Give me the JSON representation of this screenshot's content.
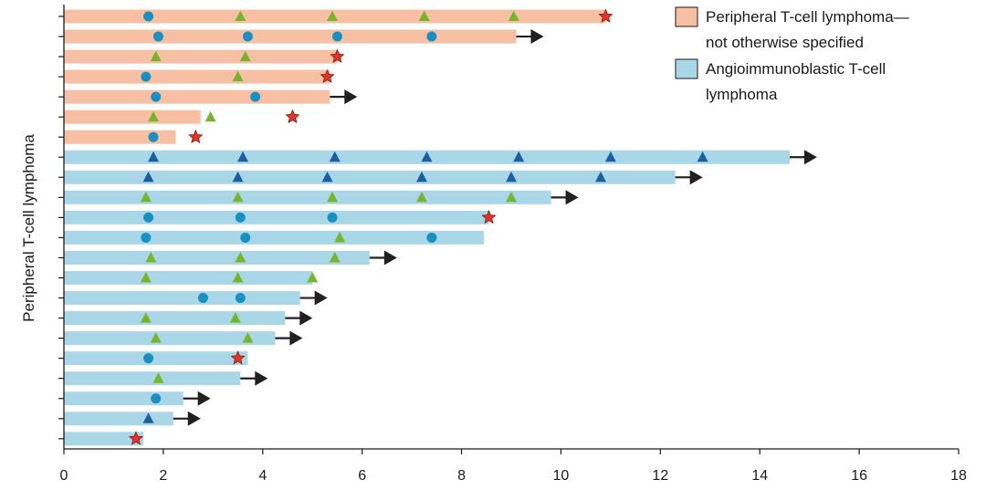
{
  "chart_data": {
    "type": "swimmer",
    "title": "",
    "xlabel": "",
    "ylabel": "Peripheral T-cell lymphoma",
    "xlim": [
      0,
      18
    ],
    "xticks": [
      0,
      2,
      4,
      6,
      8,
      10,
      12,
      14,
      16,
      18
    ],
    "xtick_labels": [
      "0",
      "2",
      "4",
      "6",
      "8",
      "10",
      "12",
      "14",
      "16",
      "18"
    ],
    "colors": {
      "ptcl_nos": "#f7bfa3",
      "aitl": "#aad7e8",
      "circle": "#1a8fc2",
      "green_triangle": "#79b52c",
      "blue_triangle": "#1b5fa0",
      "star": "#e0352b",
      "arrow": "#231f20"
    },
    "legend": [
      {
        "key": "ptcl_nos",
        "lines": [
          "Peripheral T-cell lymphoma—",
          "not otherwise specified"
        ]
      },
      {
        "key": "aitl",
        "lines": [
          "Angioimmunoblastic T-cell",
          "lymphoma"
        ]
      }
    ],
    "patients": [
      {
        "group": "ptcl_nos",
        "duration": 10.9,
        "ongoing": false,
        "markers": [
          {
            "t": 1.7,
            "s": "circle"
          },
          {
            "t": 3.55,
            "s": "green_triangle"
          },
          {
            "t": 5.4,
            "s": "green_triangle"
          },
          {
            "t": 7.25,
            "s": "green_triangle"
          },
          {
            "t": 9.05,
            "s": "green_triangle"
          },
          {
            "t": 10.9,
            "s": "star"
          }
        ]
      },
      {
        "group": "ptcl_nos",
        "duration": 9.1,
        "ongoing": true,
        "markers": [
          {
            "t": 1.9,
            "s": "circle"
          },
          {
            "t": 3.7,
            "s": "circle"
          },
          {
            "t": 5.5,
            "s": "circle"
          },
          {
            "t": 7.4,
            "s": "circle"
          }
        ]
      },
      {
        "group": "ptcl_nos",
        "duration": 5.5,
        "ongoing": false,
        "markers": [
          {
            "t": 1.85,
            "s": "green_triangle"
          },
          {
            "t": 3.65,
            "s": "green_triangle"
          },
          {
            "t": 5.5,
            "s": "star"
          }
        ]
      },
      {
        "group": "ptcl_nos",
        "duration": 5.35,
        "ongoing": false,
        "markers": [
          {
            "t": 1.65,
            "s": "circle"
          },
          {
            "t": 3.5,
            "s": "green_triangle"
          },
          {
            "t": 5.3,
            "s": "star"
          }
        ]
      },
      {
        "group": "ptcl_nos",
        "duration": 5.35,
        "ongoing": true,
        "markers": [
          {
            "t": 1.85,
            "s": "circle"
          },
          {
            "t": 3.85,
            "s": "circle"
          }
        ]
      },
      {
        "group": "ptcl_nos",
        "duration": 2.75,
        "ongoing": false,
        "markers": [
          {
            "t": 1.8,
            "s": "green_triangle"
          },
          {
            "t": 2.95,
            "s": "green_triangle"
          },
          {
            "t": 4.6,
            "s": "star"
          }
        ]
      },
      {
        "group": "ptcl_nos",
        "duration": 2.25,
        "ongoing": false,
        "markers": [
          {
            "t": 1.8,
            "s": "circle"
          },
          {
            "t": 2.65,
            "s": "star"
          }
        ]
      },
      {
        "group": "aitl",
        "duration": 14.6,
        "ongoing": true,
        "markers": [
          {
            "t": 1.8,
            "s": "blue_triangle"
          },
          {
            "t": 3.6,
            "s": "blue_triangle"
          },
          {
            "t": 5.45,
            "s": "blue_triangle"
          },
          {
            "t": 7.3,
            "s": "blue_triangle"
          },
          {
            "t": 9.15,
            "s": "blue_triangle"
          },
          {
            "t": 11.0,
            "s": "blue_triangle"
          },
          {
            "t": 12.85,
            "s": "blue_triangle"
          }
        ]
      },
      {
        "group": "aitl",
        "duration": 12.3,
        "ongoing": true,
        "markers": [
          {
            "t": 1.7,
            "s": "blue_triangle"
          },
          {
            "t": 3.5,
            "s": "blue_triangle"
          },
          {
            "t": 5.3,
            "s": "blue_triangle"
          },
          {
            "t": 7.2,
            "s": "blue_triangle"
          },
          {
            "t": 9.0,
            "s": "blue_triangle"
          },
          {
            "t": 10.8,
            "s": "blue_triangle"
          }
        ]
      },
      {
        "group": "aitl",
        "duration": 9.8,
        "ongoing": true,
        "markers": [
          {
            "t": 1.65,
            "s": "green_triangle"
          },
          {
            "t": 3.5,
            "s": "green_triangle"
          },
          {
            "t": 5.4,
            "s": "green_triangle"
          },
          {
            "t": 7.2,
            "s": "green_triangle"
          },
          {
            "t": 9.0,
            "s": "green_triangle"
          }
        ]
      },
      {
        "group": "aitl",
        "duration": 8.55,
        "ongoing": false,
        "markers": [
          {
            "t": 1.7,
            "s": "circle"
          },
          {
            "t": 3.55,
            "s": "circle"
          },
          {
            "t": 5.4,
            "s": "circle"
          },
          {
            "t": 8.55,
            "s": "star"
          }
        ]
      },
      {
        "group": "aitl",
        "duration": 8.45,
        "ongoing": false,
        "markers": [
          {
            "t": 1.65,
            "s": "circle"
          },
          {
            "t": 3.65,
            "s": "circle"
          },
          {
            "t": 5.55,
            "s": "green_triangle"
          },
          {
            "t": 7.4,
            "s": "circle"
          }
        ]
      },
      {
        "group": "aitl",
        "duration": 6.15,
        "ongoing": true,
        "markers": [
          {
            "t": 1.75,
            "s": "green_triangle"
          },
          {
            "t": 3.55,
            "s": "green_triangle"
          },
          {
            "t": 5.45,
            "s": "green_triangle"
          }
        ]
      },
      {
        "group": "aitl",
        "duration": 5.0,
        "ongoing": false,
        "markers": [
          {
            "t": 1.65,
            "s": "green_triangle"
          },
          {
            "t": 3.5,
            "s": "green_triangle"
          },
          {
            "t": 5.0,
            "s": "green_triangle"
          }
        ]
      },
      {
        "group": "aitl",
        "duration": 4.75,
        "ongoing": true,
        "markers": [
          {
            "t": 2.8,
            "s": "circle"
          },
          {
            "t": 3.55,
            "s": "circle"
          }
        ]
      },
      {
        "group": "aitl",
        "duration": 4.45,
        "ongoing": true,
        "markers": [
          {
            "t": 1.65,
            "s": "green_triangle"
          },
          {
            "t": 3.45,
            "s": "green_triangle"
          }
        ]
      },
      {
        "group": "aitl",
        "duration": 4.25,
        "ongoing": true,
        "markers": [
          {
            "t": 1.85,
            "s": "green_triangle"
          },
          {
            "t": 3.7,
            "s": "green_triangle"
          }
        ]
      },
      {
        "group": "aitl",
        "duration": 3.7,
        "ongoing": false,
        "markers": [
          {
            "t": 1.7,
            "s": "circle"
          },
          {
            "t": 3.5,
            "s": "star"
          }
        ]
      },
      {
        "group": "aitl",
        "duration": 3.55,
        "ongoing": true,
        "markers": [
          {
            "t": 1.9,
            "s": "green_triangle"
          }
        ]
      },
      {
        "group": "aitl",
        "duration": 2.4,
        "ongoing": true,
        "markers": [
          {
            "t": 1.85,
            "s": "circle"
          }
        ]
      },
      {
        "group": "aitl",
        "duration": 2.2,
        "ongoing": true,
        "markers": [
          {
            "t": 1.7,
            "s": "blue_triangle"
          }
        ]
      },
      {
        "group": "aitl",
        "duration": 1.6,
        "ongoing": false,
        "markers": [
          {
            "t": 1.45,
            "s": "star"
          }
        ]
      }
    ]
  }
}
